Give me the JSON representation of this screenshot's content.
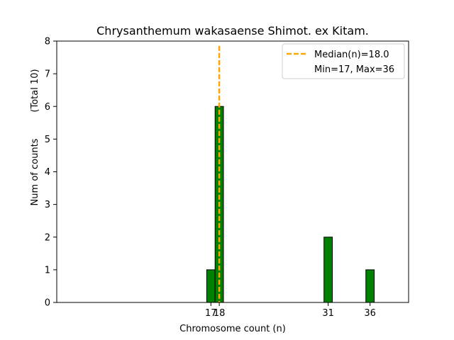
{
  "chart_data": {
    "type": "bar",
    "title": "Chrysanthemum wakasaense Shimot. ex Kitam.",
    "xlabel": "Chromosome count (n)",
    "ylabel": "Num of counts",
    "ylabel_note": "(Total 10)",
    "bins": [
      {
        "x": 17,
        "count": 1
      },
      {
        "x": 18,
        "count": 6
      },
      {
        "x": 31,
        "count": 2
      },
      {
        "x": 36,
        "count": 1
      }
    ],
    "xticks": [
      17,
      18,
      31,
      36
    ],
    "yticks": [
      0,
      1,
      2,
      3,
      4,
      5,
      6,
      7,
      8
    ],
    "xlim": [
      -1.4,
      40.6
    ],
    "ylim": [
      0,
      8
    ],
    "bar_color": "#008000",
    "bar_edge_color": "#000000",
    "median": 18.0,
    "median_color": "#FFA500",
    "legend": {
      "placement": "top-right",
      "entries": [
        "Median(n)=18.0",
        "Min=17, Max=36"
      ]
    }
  }
}
